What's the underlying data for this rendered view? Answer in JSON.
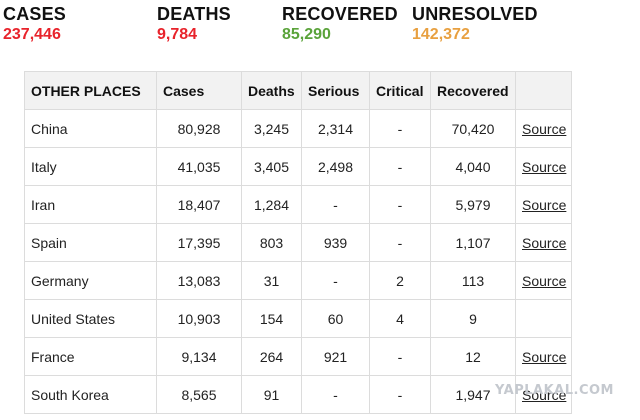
{
  "summary": {
    "cases": {
      "label": "CASES",
      "value": "237,446",
      "color": "#e8232b"
    },
    "deaths": {
      "label": "DEATHS",
      "value": "9,784",
      "color": "#e8232b"
    },
    "recovered": {
      "label": "RECOVERED",
      "value": "85,290",
      "color": "#5aa33a"
    },
    "unresolved": {
      "label": "UNRESOLVED",
      "value": "142,372",
      "color": "#e8a040"
    }
  },
  "table": {
    "headers": [
      "OTHER PLACES",
      "Cases",
      "Deaths",
      "Serious",
      "Critical",
      "Recovered",
      ""
    ],
    "rows": [
      {
        "place": "China",
        "cases": "80,928",
        "deaths": "3,245",
        "serious": "2,314",
        "critical": "-",
        "recovered": "70,420",
        "source": "Source"
      },
      {
        "place": "Italy",
        "cases": "41,035",
        "deaths": "3,405",
        "serious": "2,498",
        "critical": "-",
        "recovered": "4,040",
        "source": "Source"
      },
      {
        "place": "Iran",
        "cases": "18,407",
        "deaths": "1,284",
        "serious": "-",
        "critical": "-",
        "recovered": "5,979",
        "source": "Source"
      },
      {
        "place": "Spain",
        "cases": "17,395",
        "deaths": "803",
        "serious": "939",
        "critical": "-",
        "recovered": "1,107",
        "source": "Source"
      },
      {
        "place": "Germany",
        "cases": "13,083",
        "deaths": "31",
        "serious": "-",
        "critical": "2",
        "recovered": "113",
        "source": "Source"
      },
      {
        "place": "United States",
        "cases": "10,903",
        "deaths": "154",
        "serious": "60",
        "critical": "4",
        "recovered": "9",
        "source": ""
      },
      {
        "place": "France",
        "cases": "9,134",
        "deaths": "264",
        "serious": "921",
        "critical": "-",
        "recovered": "12",
        "source": "Source"
      },
      {
        "place": "South Korea",
        "cases": "8,565",
        "deaths": "91",
        "serious": "-",
        "critical": "-",
        "recovered": "1,947",
        "source": "Source"
      }
    ]
  },
  "watermark": "YAPLAKAL.COM"
}
